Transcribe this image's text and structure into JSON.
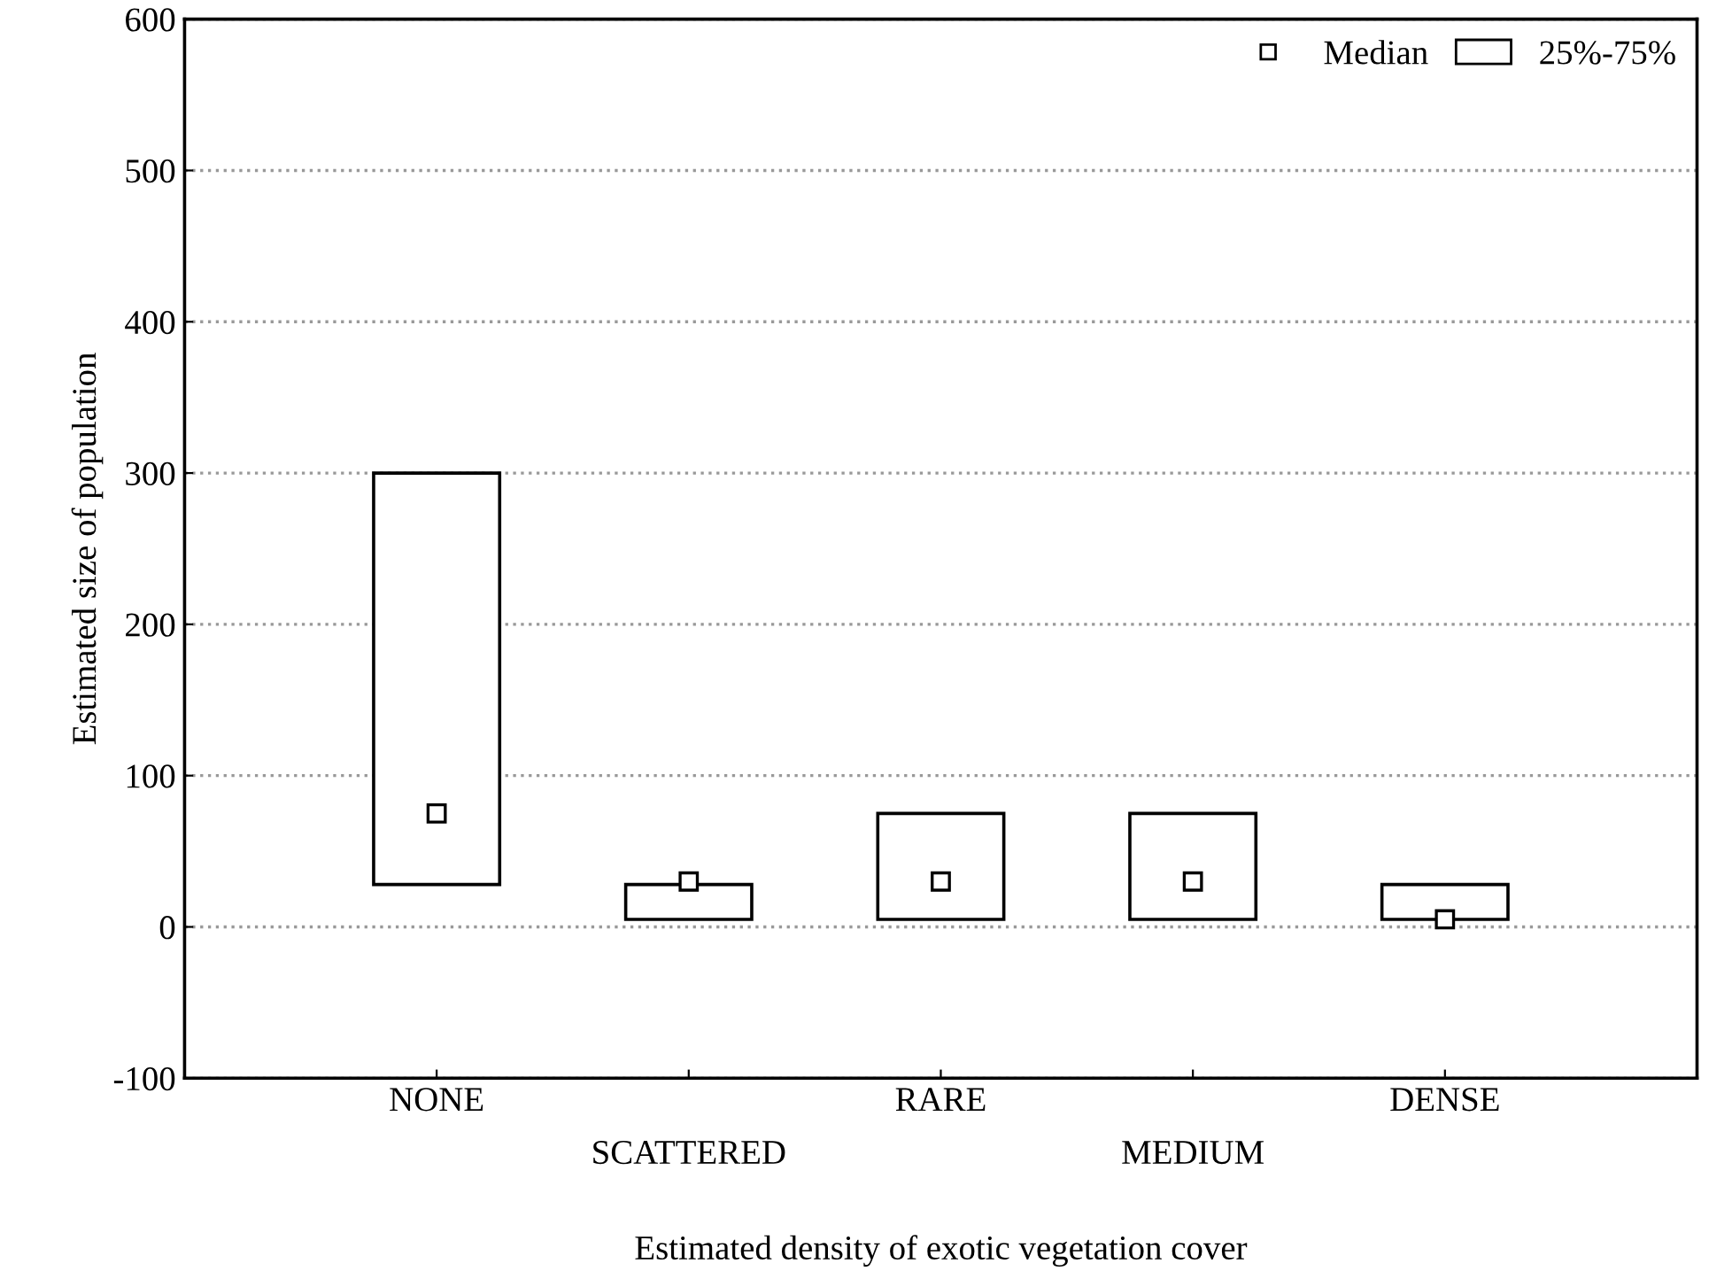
{
  "chart_data": {
    "type": "bar",
    "xlabel": "Estimated density of exotic vegetation cover",
    "ylabel": "Estimated size of population",
    "categories": [
      "NONE",
      "SCATTERED",
      "RARE",
      "MEDIUM",
      "DENSE"
    ],
    "series": [
      {
        "name": "25%-75%",
        "color": "#ffffff",
        "base": [
          28,
          5,
          5,
          5,
          5
        ],
        "values": [
          272,
          23,
          70,
          70,
          23
        ]
      },
      {
        "name": "Median",
        "type": "scatter",
        "color": "#ffffff",
        "marker": "square",
        "x": [
          "NONE",
          "SCATTERED",
          "RARE",
          "MEDIUM",
          "DENSE"
        ],
        "values": [
          75,
          30,
          30,
          30,
          5
        ]
      }
    ],
    "ylim": [
      -100,
      600
    ],
    "yticks": [
      -100,
      0,
      100,
      200,
      300,
      400,
      500,
      600
    ],
    "grid": "y",
    "legend": "top right"
  }
}
